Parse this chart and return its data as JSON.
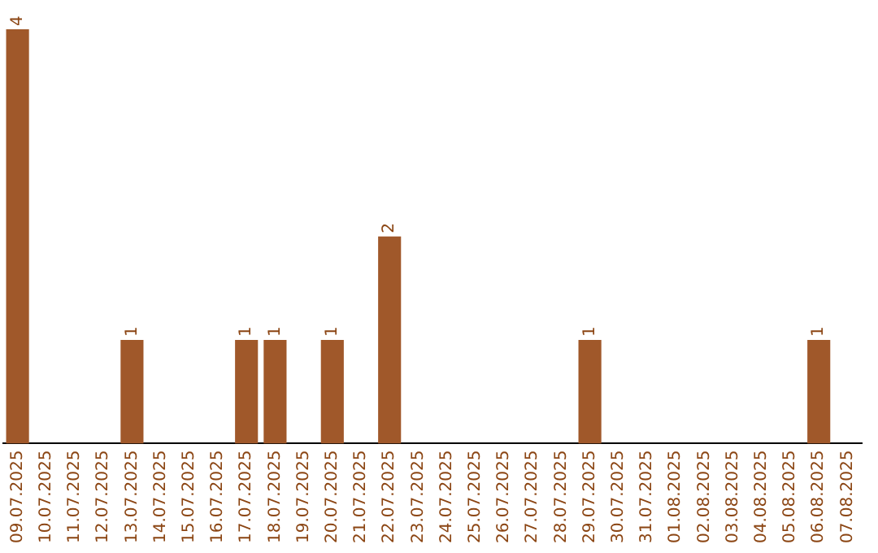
{
  "chart_data": {
    "type": "bar",
    "categories": [
      "09.07.2025",
      "10.07.2025",
      "11.07.2025",
      "12.07.2025",
      "13.07.2025",
      "14.07.2025",
      "15.07.2025",
      "16.07.2025",
      "17.07.2025",
      "18.07.2025",
      "19.07.2025",
      "20.07.2025",
      "21.07.2025",
      "22.07.2025",
      "23.07.2025",
      "24.07.2025",
      "25.07.2025",
      "26.07.2025",
      "27.07.2025",
      "28.07.2025",
      "29.07.2025",
      "30.07.2025",
      "31.07.2025",
      "01.08.2025",
      "02.08.2025",
      "03.08.2025",
      "04.08.2025",
      "05.08.2025",
      "06.08.2025",
      "07.08.2025"
    ],
    "values": [
      4,
      0,
      0,
      0,
      1,
      0,
      0,
      0,
      1,
      1,
      0,
      1,
      0,
      2,
      0,
      0,
      0,
      0,
      0,
      0,
      1,
      0,
      0,
      0,
      0,
      0,
      0,
      0,
      1,
      0
    ],
    "value_labels": [
      "4",
      null,
      null,
      null,
      "1",
      null,
      null,
      null,
      "1",
      "1",
      null,
      "1",
      null,
      "2",
      null,
      null,
      null,
      null,
      null,
      null,
      "1",
      null,
      null,
      null,
      null,
      null,
      null,
      null,
      "1",
      null
    ],
    "color": "#a0582a",
    "grid": false,
    "legend": false
  }
}
